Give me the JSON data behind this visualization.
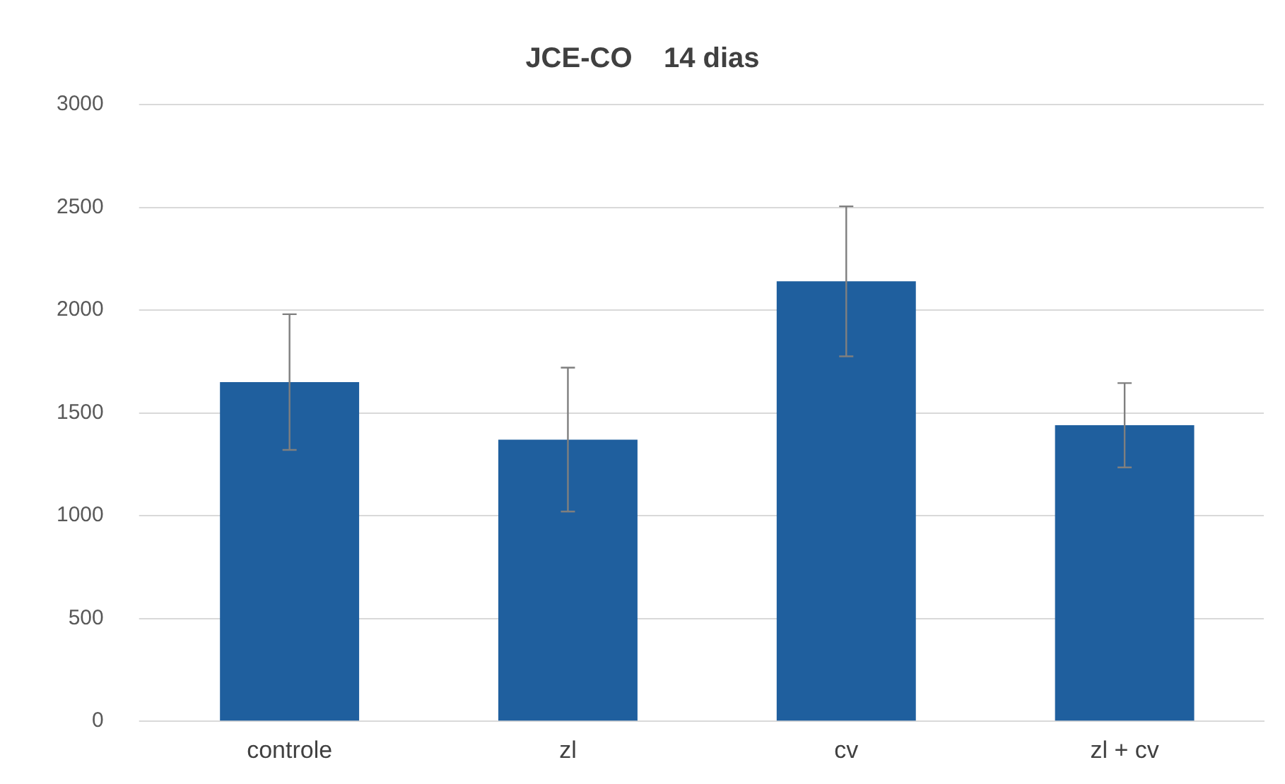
{
  "chart_data": {
    "type": "bar",
    "title": "JCE-CO    14 dias",
    "categories": [
      "controle",
      "zl",
      "cv",
      "zl + cv"
    ],
    "values": [
      1650,
      1370,
      2140,
      1440
    ],
    "errors": [
      330,
      350,
      365,
      205
    ],
    "color": "#1f5f9e",
    "ylim": [
      0,
      3000
    ],
    "yticks": [
      0,
      500,
      1000,
      1500,
      2000,
      2500,
      3000
    ],
    "grid": "y",
    "legend": false
  }
}
